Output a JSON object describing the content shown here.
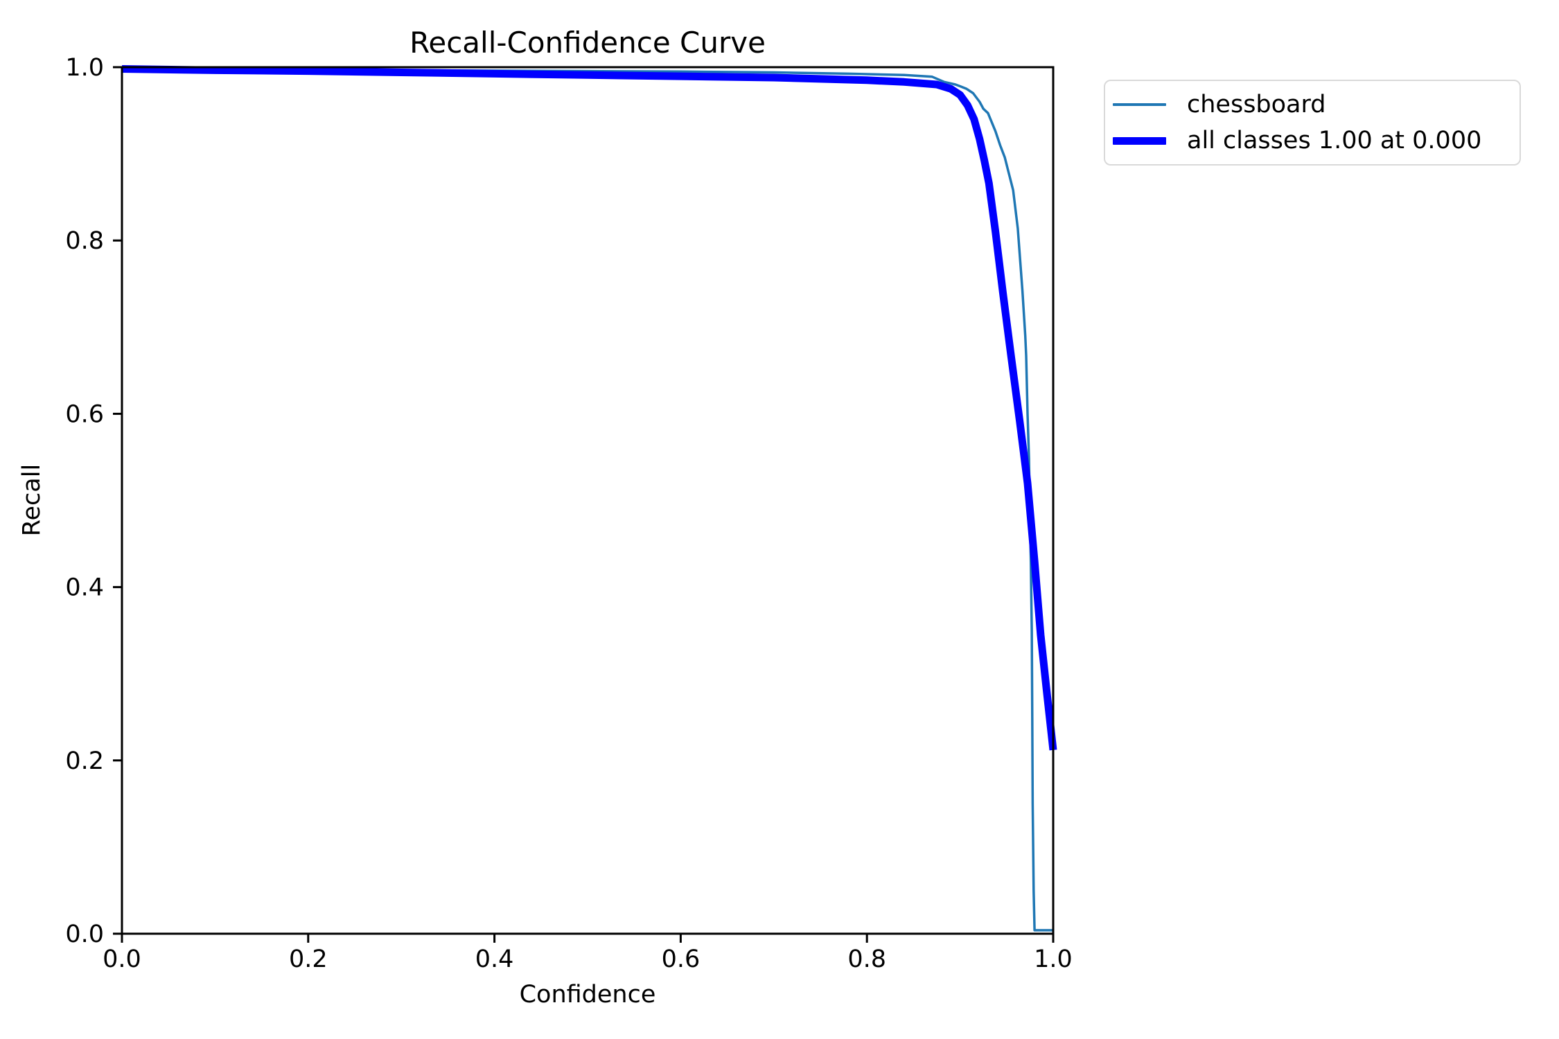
{
  "chart_data": {
    "type": "line",
    "title": "Recall-Confidence Curve",
    "xlabel": "Confidence",
    "ylabel": "Recall",
    "xlim": [
      0.0,
      1.0
    ],
    "ylim": [
      0.0,
      1.0
    ],
    "xticks": {
      "values": [
        0.0,
        0.2,
        0.4,
        0.6,
        0.8,
        1.0
      ],
      "labels": [
        "0.0",
        "0.2",
        "0.4",
        "0.6",
        "0.8",
        "1.0"
      ]
    },
    "yticks": {
      "values": [
        0.0,
        0.2,
        0.4,
        0.6,
        0.8,
        1.0
      ],
      "labels": [
        "0.0",
        "0.2",
        "0.4",
        "0.6",
        "0.8",
        "1.0"
      ]
    },
    "grid": false,
    "background_color": "#ffffff",
    "axis_color": "#000000",
    "legend": {
      "position": "outside-upper-right",
      "border_color": "#d9d9d9",
      "entries": [
        {
          "label": "chessboard",
          "color": "#1f77b4",
          "line_width": 4
        },
        {
          "label": "all classes 1.00 at 0.000",
          "color": "#0000ff",
          "line_width": 11
        }
      ]
    },
    "series": [
      {
        "name": "chessboard",
        "color": "#1f77b4",
        "line_width": 3.5,
        "points": [
          [
            0.0,
            0.998
          ],
          [
            0.1,
            0.9975
          ],
          [
            0.2,
            0.997
          ],
          [
            0.3,
            0.9965
          ],
          [
            0.4,
            0.996
          ],
          [
            0.5,
            0.9955
          ],
          [
            0.6,
            0.995
          ],
          [
            0.7,
            0.994
          ],
          [
            0.78,
            0.9925
          ],
          [
            0.84,
            0.991
          ],
          [
            0.87,
            0.989
          ],
          [
            0.883,
            0.983
          ],
          [
            0.895,
            0.98
          ],
          [
            0.9,
            0.978
          ],
          [
            0.907,
            0.975
          ],
          [
            0.914,
            0.97
          ],
          [
            0.921,
            0.96
          ],
          [
            0.925,
            0.952
          ],
          [
            0.93,
            0.947
          ],
          [
            0.935,
            0.934
          ],
          [
            0.938,
            0.926
          ],
          [
            0.943,
            0.91
          ],
          [
            0.948,
            0.896
          ],
          [
            0.953,
            0.875
          ],
          [
            0.957,
            0.858
          ],
          [
            0.962,
            0.814
          ],
          [
            0.967,
            0.742
          ],
          [
            0.97,
            0.69
          ],
          [
            0.971,
            0.667
          ],
          [
            0.9725,
            0.6
          ],
          [
            0.974,
            0.548
          ],
          [
            0.975,
            0.48
          ],
          [
            0.976,
            0.43
          ],
          [
            0.977,
            0.35
          ],
          [
            0.9775,
            0.25
          ],
          [
            0.978,
            0.15
          ],
          [
            0.979,
            0.05
          ],
          [
            0.98,
            0.004
          ],
          [
            1.0,
            0.004
          ]
        ]
      },
      {
        "name": "all classes 1.00 at 0.000",
        "color": "#0000ff",
        "line_width": 11,
        "points": [
          [
            0.0,
            0.998
          ],
          [
            0.1,
            0.9965
          ],
          [
            0.2,
            0.9955
          ],
          [
            0.3,
            0.994
          ],
          [
            0.4,
            0.9925
          ],
          [
            0.5,
            0.991
          ],
          [
            0.6,
            0.9895
          ],
          [
            0.7,
            0.988
          ],
          [
            0.8,
            0.985
          ],
          [
            0.84,
            0.983
          ],
          [
            0.875,
            0.98
          ],
          [
            0.89,
            0.975
          ],
          [
            0.9,
            0.968
          ],
          [
            0.908,
            0.956
          ],
          [
            0.915,
            0.94
          ],
          [
            0.921,
            0.917
          ],
          [
            0.926,
            0.893
          ],
          [
            0.931,
            0.866
          ],
          [
            0.938,
            0.81
          ],
          [
            0.946,
            0.74
          ],
          [
            0.955,
            0.665
          ],
          [
            0.964,
            0.592
          ],
          [
            0.9725,
            0.52
          ],
          [
            0.98,
            0.43
          ],
          [
            0.9865,
            0.345
          ],
          [
            0.9935,
            0.275
          ],
          [
            1.0,
            0.212
          ]
        ]
      }
    ]
  }
}
